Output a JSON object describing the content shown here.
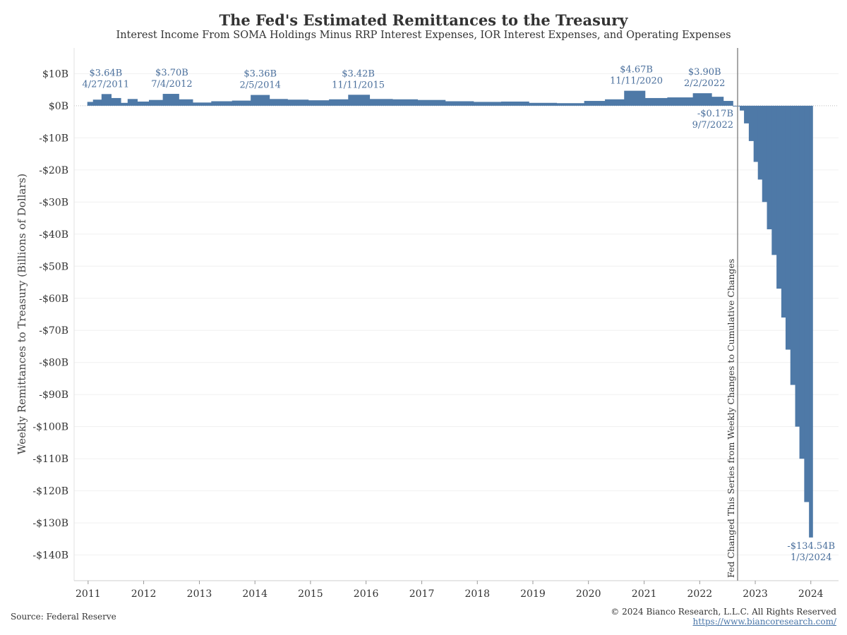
{
  "header": {
    "title": "The Fed's Estimated Remittances to the Treasury",
    "subtitle": "Interest Income From SOMA Holdings Minus RRP Interest Expenses, IOR Interest Expenses, and Operating Expenses"
  },
  "footer": {
    "source": "Source: Federal Reserve",
    "copyright": "© 2024 Bianco Research, L.L.C. All Rights Reserved",
    "link": "https://www.biancoresearch.com/"
  },
  "chart_data": {
    "type": "bar",
    "ylabel": "Weekly Remittances to Treasury (Billions of Dollars)",
    "xlabel": "",
    "ylim": [
      -148,
      18
    ],
    "xlim": [
      "2010-10-01",
      "2024-07-01"
    ],
    "bar_color": "#4e79a7",
    "grid": true,
    "y_ticks": [
      {
        "value": 10,
        "label": "$10B"
      },
      {
        "value": 0,
        "label": "$0B"
      },
      {
        "value": -10,
        "label": "-$10B"
      },
      {
        "value": -20,
        "label": "-$20B"
      },
      {
        "value": -30,
        "label": "-$30B"
      },
      {
        "value": -40,
        "label": "-$40B"
      },
      {
        "value": -50,
        "label": "-$50B"
      },
      {
        "value": -60,
        "label": "-$60B"
      },
      {
        "value": -70,
        "label": "-$70B"
      },
      {
        "value": -80,
        "label": "-$80B"
      },
      {
        "value": -90,
        "label": "-$90B"
      },
      {
        "value": -100,
        "label": "-$100B"
      },
      {
        "value": -110,
        "label": "-$110B"
      },
      {
        "value": -120,
        "label": "-$120B"
      },
      {
        "value": -130,
        "label": "-$130B"
      },
      {
        "value": -140,
        "label": "-$140B"
      }
    ],
    "x_ticks": [
      {
        "date": "2011-01-01",
        "label": "2011"
      },
      {
        "date": "2012-01-01",
        "label": "2012"
      },
      {
        "date": "2013-01-01",
        "label": "2013"
      },
      {
        "date": "2014-01-01",
        "label": "2014"
      },
      {
        "date": "2015-01-01",
        "label": "2015"
      },
      {
        "date": "2016-01-01",
        "label": "2016"
      },
      {
        "date": "2017-01-01",
        "label": "2017"
      },
      {
        "date": "2018-01-01",
        "label": "2018"
      },
      {
        "date": "2019-01-01",
        "label": "2019"
      },
      {
        "date": "2020-01-01",
        "label": "2020"
      },
      {
        "date": "2021-01-01",
        "label": "2021"
      },
      {
        "date": "2022-01-01",
        "label": "2022"
      },
      {
        "date": "2023-01-01",
        "label": "2023"
      },
      {
        "date": "2024-01-01",
        "label": "2024"
      }
    ],
    "series": [
      {
        "points": [
          [
            "2011-01-05",
            1.2
          ],
          [
            "2011-03-02",
            1.9
          ],
          [
            "2011-04-27",
            3.64
          ],
          [
            "2011-07-06",
            2.4
          ],
          [
            "2011-08-31",
            0.9
          ],
          [
            "2011-10-05",
            2.1
          ],
          [
            "2012-01-04",
            1.3
          ],
          [
            "2012-03-07",
            1.8
          ],
          [
            "2012-07-04",
            3.7
          ],
          [
            "2012-10-03",
            2.0
          ],
          [
            "2013-01-02",
            1.0
          ],
          [
            "2013-06-05",
            1.4
          ],
          [
            "2013-10-02",
            1.6
          ],
          [
            "2014-02-05",
            3.36
          ],
          [
            "2014-06-04",
            2.1
          ],
          [
            "2014-10-01",
            1.9
          ],
          [
            "2015-03-04",
            1.7
          ],
          [
            "2015-07-01",
            2.0
          ],
          [
            "2015-11-11",
            3.42
          ],
          [
            "2016-04-06",
            2.1
          ],
          [
            "2016-09-07",
            2.0
          ],
          [
            "2017-03-01",
            1.8
          ],
          [
            "2017-09-06",
            1.4
          ],
          [
            "2018-03-07",
            1.2
          ],
          [
            "2018-09-05",
            1.3
          ],
          [
            "2019-03-06",
            0.9
          ],
          [
            "2019-09-04",
            0.8
          ],
          [
            "2020-03-04",
            1.5
          ],
          [
            "2020-06-03",
            2.0
          ],
          [
            "2020-11-11",
            4.67
          ],
          [
            "2021-03-03",
            2.4
          ],
          [
            "2021-09-01",
            2.6
          ],
          [
            "2022-02-02",
            3.9
          ],
          [
            "2022-05-04",
            2.8
          ],
          [
            "2022-07-06",
            1.5
          ],
          [
            "2022-09-07",
            -0.17
          ],
          [
            "2022-10-05",
            -1.5
          ],
          [
            "2022-11-02",
            -5.5
          ],
          [
            "2022-12-07",
            -11.0
          ],
          [
            "2023-01-04",
            -17.5
          ],
          [
            "2023-02-01",
            -23.0
          ],
          [
            "2023-03-01",
            -30.0
          ],
          [
            "2023-04-05",
            -38.5
          ],
          [
            "2023-05-03",
            -46.5
          ],
          [
            "2023-06-07",
            -57.0
          ],
          [
            "2023-07-05",
            -66.0
          ],
          [
            "2023-08-02",
            -76.0
          ],
          [
            "2023-09-06",
            -87.0
          ],
          [
            "2023-10-04",
            -100.0
          ],
          [
            "2023-11-01",
            -110.0
          ],
          [
            "2023-12-06",
            -123.5
          ],
          [
            "2024-01-03",
            -134.54
          ]
        ]
      }
    ],
    "annotations": [
      {
        "date": "2011-04-27",
        "value": 3.64,
        "label": "$3.64B",
        "sublabel": "4/27/2011"
      },
      {
        "date": "2012-07-04",
        "value": 3.7,
        "label": "$3.70B",
        "sublabel": "7/4/2012"
      },
      {
        "date": "2014-02-05",
        "value": 3.36,
        "label": "$3.36B",
        "sublabel": "2/5/2014"
      },
      {
        "date": "2015-11-11",
        "value": 3.42,
        "label": "$3.42B",
        "sublabel": "11/11/2015"
      },
      {
        "date": "2020-11-11",
        "value": 4.67,
        "label": "$4.67B",
        "sublabel": "11/11/2020"
      },
      {
        "date": "2022-02-02",
        "value": 3.9,
        "label": "$3.90B",
        "sublabel": "2/2/2022"
      },
      {
        "date": "2022-09-07",
        "value": -0.17,
        "label": "-$0.17B",
        "sublabel": "9/7/2022"
      },
      {
        "date": "2024-01-03",
        "value": -134.54,
        "label": "-$134.54B",
        "sublabel": "1/3/2024"
      }
    ],
    "reference_line": {
      "date": "2022-09-07",
      "label": "Fed Changed This Series from Weekly Changes to Cumulative Changes"
    }
  }
}
